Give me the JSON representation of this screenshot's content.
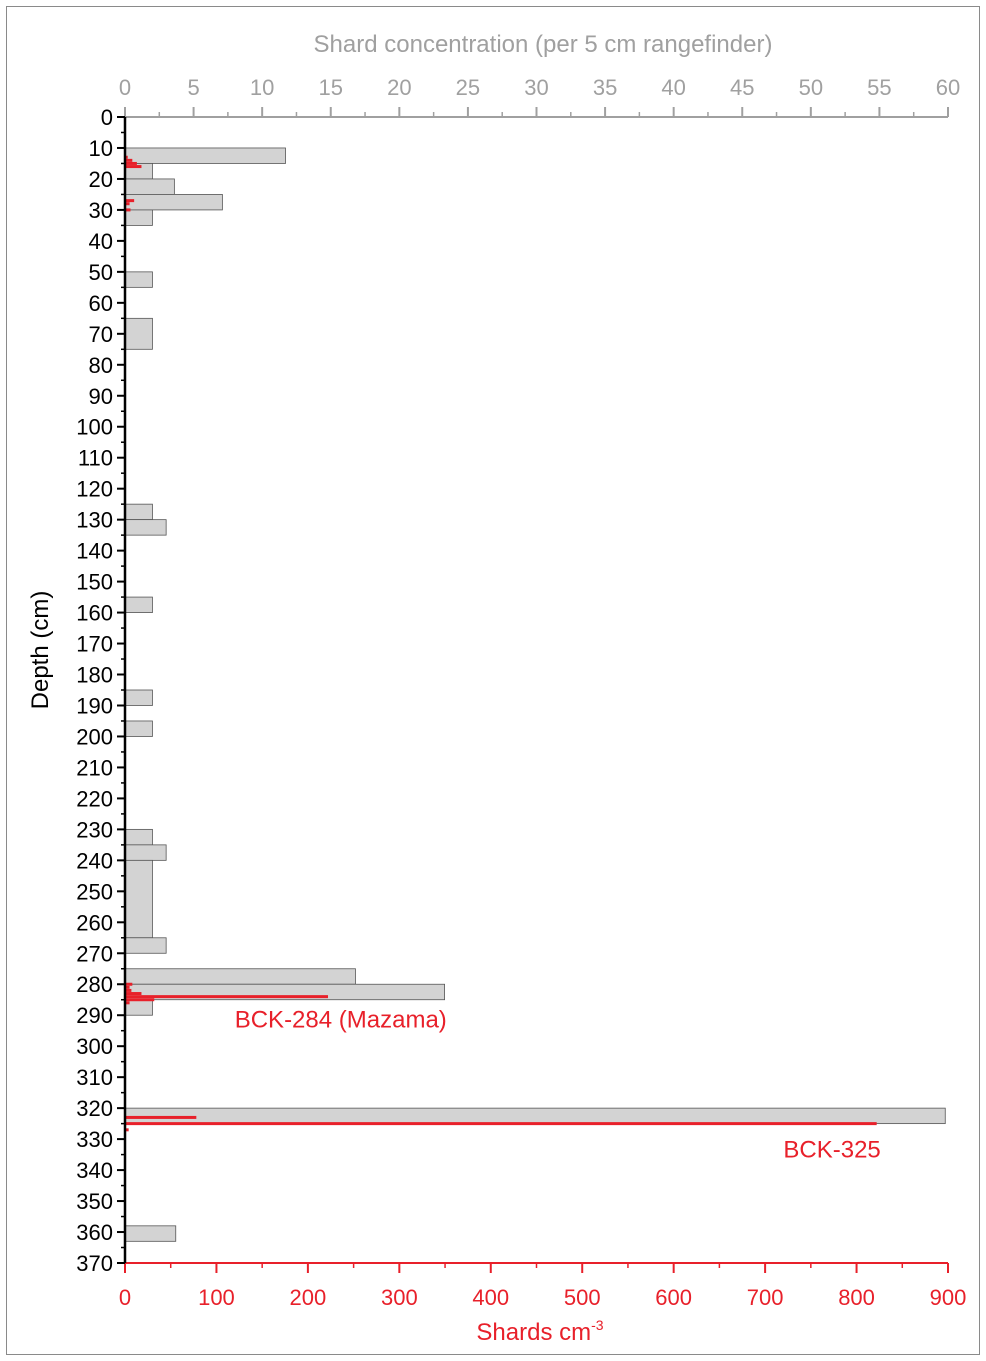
{
  "chart_data": {
    "type": "bar",
    "orientation": "horizontal",
    "ylabel": "Depth (cm)",
    "ylim": [
      0,
      370
    ],
    "y_inverted": true,
    "y_ticks": [
      0,
      10,
      20,
      30,
      40,
      50,
      60,
      70,
      80,
      90,
      100,
      110,
      120,
      130,
      140,
      150,
      160,
      170,
      180,
      190,
      200,
      210,
      220,
      230,
      240,
      250,
      260,
      270,
      280,
      290,
      300,
      310,
      320,
      330,
      340,
      350,
      360,
      370
    ],
    "top_axis": {
      "label": "Shard concentration (per 5 cm rangefinder)",
      "range": [
        0,
        60
      ],
      "ticks": [
        0,
        5,
        10,
        15,
        20,
        25,
        30,
        35,
        40,
        45,
        50,
        55,
        60
      ],
      "color": "#a0a0a0"
    },
    "bottom_axis": {
      "label_main": "Shards cm",
      "label_sup": "-3",
      "range": [
        0,
        900
      ],
      "ticks": [
        0,
        100,
        200,
        300,
        400,
        500,
        600,
        700,
        800,
        900
      ],
      "color": "#e8202a"
    },
    "series": [
      {
        "axis": "top",
        "color": "#d3d3d3",
        "bars": [
          {
            "from": 10,
            "to": 15,
            "value": 11.7
          },
          {
            "from": 15,
            "to": 20,
            "value": 2
          },
          {
            "from": 20,
            "to": 25,
            "value": 3.6
          },
          {
            "from": 25,
            "to": 30,
            "value": 7.1
          },
          {
            "from": 30,
            "to": 35,
            "value": 2
          },
          {
            "from": 50,
            "to": 55,
            "value": 2
          },
          {
            "from": 65,
            "to": 75,
            "value": 2
          },
          {
            "from": 125,
            "to": 130,
            "value": 2
          },
          {
            "from": 130,
            "to": 135,
            "value": 3
          },
          {
            "from": 155,
            "to": 160,
            "value": 2
          },
          {
            "from": 185,
            "to": 190,
            "value": 2
          },
          {
            "from": 195,
            "to": 200,
            "value": 2
          },
          {
            "from": 230,
            "to": 235,
            "value": 2
          },
          {
            "from": 235,
            "to": 240,
            "value": 3
          },
          {
            "from": 240,
            "to": 265,
            "value": 2
          },
          {
            "from": 265,
            "to": 270,
            "value": 3
          },
          {
            "from": 275,
            "to": 280,
            "value": 16.8
          },
          {
            "from": 280,
            "to": 285,
            "value": 23.3
          },
          {
            "from": 285,
            "to": 290,
            "value": 2
          },
          {
            "from": 320,
            "to": 325,
            "value": 59.8
          },
          {
            "from": 358,
            "to": 363,
            "value": 3.7
          }
        ]
      },
      {
        "axis": "bottom",
        "color": "#e8202a",
        "bars": [
          {
            "depth": 13,
            "value": 3
          },
          {
            "depth": 14,
            "value": 8
          },
          {
            "depth": 15,
            "value": 13
          },
          {
            "depth": 16,
            "value": 18
          },
          {
            "depth": 27,
            "value": 10
          },
          {
            "depth": 28,
            "value": 5
          },
          {
            "depth": 30,
            "value": 6
          },
          {
            "depth": 280,
            "value": 8
          },
          {
            "depth": 281,
            "value": 5
          },
          {
            "depth": 282,
            "value": 7
          },
          {
            "depth": 283,
            "value": 18
          },
          {
            "depth": 284,
            "value": 222
          },
          {
            "depth": 285,
            "value": 32
          },
          {
            "depth": 286,
            "value": 5
          },
          {
            "depth": 323,
            "value": 78
          },
          {
            "depth": 325,
            "value": 822
          },
          {
            "depth": 327,
            "value": 4
          }
        ]
      }
    ],
    "annotations": [
      {
        "text": "BCK-284 (Mazama)",
        "depth": 294,
        "value": 120
      },
      {
        "text": "BCK-325",
        "depth": 336,
        "value": 720
      }
    ]
  }
}
